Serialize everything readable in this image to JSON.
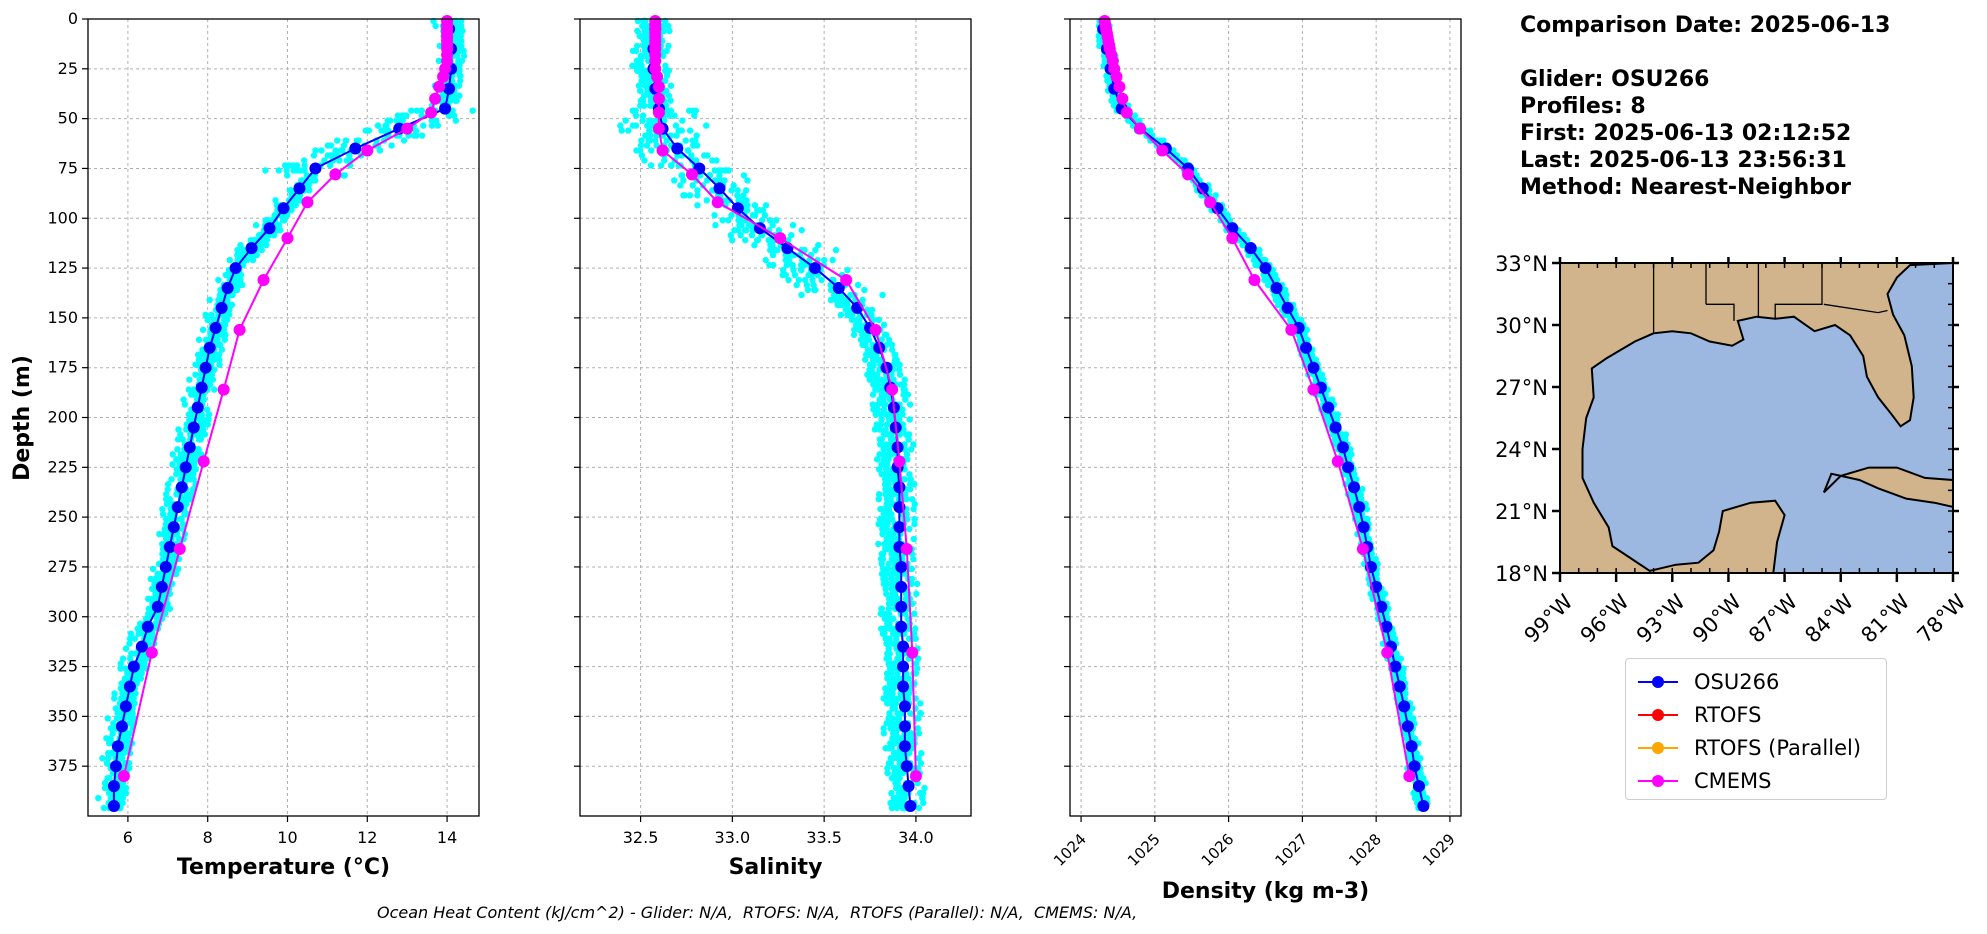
{
  "info": {
    "comparison_date": "Comparison Date: 2025-06-13",
    "glider": "Glider: OSU266",
    "profiles": "Profiles: 8",
    "first": "First: 2025-06-13 02:12:52",
    "last": "Last: 2025-06-13 23:56:31",
    "method": "Method: Nearest-Neighbor"
  },
  "footer": {
    "ohc": "Ocean Heat Content (kJ/cm^2) - Glider: N/A,  RTOFS: N/A,  RTOFS (Parallel): N/A,  CMEMS: N/A,"
  },
  "legend": [
    {
      "label": "OSU266",
      "color": "#0000ff"
    },
    {
      "label": "RTOFS",
      "color": "#ff0000"
    },
    {
      "label": "RTOFS (Parallel)",
      "color": "#ffa500"
    },
    {
      "label": "CMEMS",
      "color": "#ff00ff"
    }
  ],
  "colors": {
    "glider_cloud": "#00ffff",
    "land": "#d2b48c",
    "ocean": "#9cb8e0",
    "grid": "#b0b0b0"
  },
  "chart_data": [
    {
      "type": "line",
      "xlabel": "Temperature (°C)",
      "ylabel": "Depth (m)",
      "xlim": [
        5.0,
        14.8
      ],
      "ylim": [
        400,
        0
      ],
      "xticks": [
        6,
        8,
        10,
        12,
        14
      ],
      "yticks": [
        0,
        25,
        50,
        75,
        100,
        125,
        150,
        175,
        200,
        225,
        250,
        275,
        300,
        325,
        350,
        375
      ],
      "grid": true,
      "series": [
        {
          "name": "OSU266",
          "depth": [
            5,
            15,
            25,
            35,
            45,
            55,
            65,
            75,
            85,
            95,
            105,
            115,
            125,
            135,
            145,
            155,
            165,
            175,
            185,
            195,
            205,
            215,
            225,
            235,
            245,
            255,
            265,
            275,
            285,
            295,
            305,
            315,
            325,
            335,
            345,
            355,
            365,
            375,
            385,
            395
          ],
          "values": [
            14.05,
            14.1,
            14.1,
            14.05,
            13.95,
            12.8,
            11.7,
            10.7,
            10.3,
            9.9,
            9.55,
            9.1,
            8.7,
            8.5,
            8.35,
            8.2,
            8.05,
            7.95,
            7.85,
            7.75,
            7.65,
            7.55,
            7.45,
            7.35,
            7.25,
            7.15,
            7.05,
            6.95,
            6.85,
            6.75,
            6.5,
            6.35,
            6.15,
            6.05,
            5.95,
            5.85,
            5.75,
            5.7,
            5.65,
            5.65
          ]
        },
        {
          "name": "CMEMS",
          "depth": [
            1,
            3,
            5,
            7,
            9,
            11,
            13,
            15,
            18,
            21,
            25,
            29,
            34,
            40,
            47,
            55,
            66,
            78,
            92,
            110,
            131,
            156,
            186,
            222,
            266,
            318,
            380
          ],
          "values": [
            14.0,
            14.0,
            14.0,
            14.0,
            14.0,
            14.0,
            14.0,
            14.0,
            14.0,
            14.0,
            13.95,
            13.9,
            13.8,
            13.7,
            13.6,
            13.0,
            12.0,
            11.2,
            10.5,
            10.0,
            9.4,
            8.8,
            8.4,
            7.9,
            7.3,
            6.6,
            5.9
          ]
        }
      ]
    },
    {
      "type": "line",
      "xlabel": "Salinity",
      "xlim": [
        32.17,
        34.3
      ],
      "ylim": [
        400,
        0
      ],
      "xticks": [
        32.5,
        33.0,
        33.5,
        34.0
      ],
      "grid": true,
      "series": [
        {
          "name": "OSU266",
          "depth": [
            5,
            15,
            25,
            35,
            45,
            55,
            65,
            75,
            85,
            95,
            105,
            115,
            125,
            135,
            145,
            155,
            165,
            175,
            185,
            195,
            205,
            215,
            225,
            235,
            245,
            255,
            265,
            275,
            285,
            295,
            305,
            315,
            325,
            335,
            345,
            355,
            365,
            375,
            385,
            395
          ],
          "values": [
            32.58,
            32.57,
            32.57,
            32.58,
            32.6,
            32.62,
            32.7,
            32.82,
            32.93,
            33.03,
            33.15,
            33.3,
            33.45,
            33.58,
            33.68,
            33.75,
            33.8,
            33.84,
            33.86,
            33.88,
            33.89,
            33.9,
            33.9,
            33.91,
            33.91,
            33.91,
            33.91,
            33.92,
            33.92,
            33.92,
            33.92,
            33.93,
            33.93,
            33.93,
            33.94,
            33.94,
            33.94,
            33.95,
            33.96,
            33.97
          ]
        },
        {
          "name": "CMEMS",
          "depth": [
            1,
            3,
            5,
            7,
            9,
            11,
            13,
            15,
            18,
            21,
            25,
            29,
            34,
            40,
            47,
            55,
            66,
            78,
            92,
            110,
            131,
            156,
            186,
            222,
            266,
            318,
            380
          ],
          "values": [
            32.58,
            32.58,
            32.58,
            32.58,
            32.58,
            32.58,
            32.58,
            32.58,
            32.58,
            32.58,
            32.58,
            32.59,
            32.6,
            32.6,
            32.6,
            32.6,
            32.62,
            32.78,
            32.92,
            33.26,
            33.62,
            33.78,
            33.87,
            33.91,
            33.95,
            33.98,
            34.0
          ]
        }
      ]
    },
    {
      "type": "line",
      "xlabel": "Density (kg m-3)",
      "xlim": [
        1023.85,
        1029.15
      ],
      "ylim": [
        400,
        0
      ],
      "xticks": [
        1024,
        1025,
        1026,
        1027,
        1028,
        1029
      ],
      "grid": true,
      "series": [
        {
          "name": "OSU266",
          "depth": [
            5,
            15,
            25,
            35,
            45,
            55,
            65,
            75,
            85,
            95,
            105,
            115,
            125,
            135,
            145,
            155,
            165,
            175,
            185,
            195,
            205,
            215,
            225,
            235,
            245,
            255,
            265,
            275,
            285,
            295,
            305,
            315,
            325,
            335,
            345,
            355,
            365,
            375,
            385,
            395
          ],
          "values": [
            1024.3,
            1024.35,
            1024.4,
            1024.45,
            1024.55,
            1024.8,
            1025.15,
            1025.45,
            1025.65,
            1025.85,
            1026.05,
            1026.3,
            1026.5,
            1026.65,
            1026.8,
            1026.95,
            1027.05,
            1027.15,
            1027.25,
            1027.35,
            1027.45,
            1027.55,
            1027.62,
            1027.7,
            1027.77,
            1027.83,
            1027.88,
            1027.93,
            1028.0,
            1028.07,
            1028.14,
            1028.2,
            1028.26,
            1028.32,
            1028.38,
            1028.43,
            1028.48,
            1028.52,
            1028.58,
            1028.64
          ]
        },
        {
          "name": "CMEMS",
          "depth": [
            1,
            3,
            5,
            7,
            9,
            11,
            13,
            15,
            18,
            21,
            25,
            29,
            34,
            40,
            47,
            55,
            66,
            78,
            92,
            110,
            131,
            156,
            186,
            222,
            266,
            318,
            380
          ],
          "values": [
            1024.32,
            1024.33,
            1024.34,
            1024.35,
            1024.36,
            1024.37,
            1024.38,
            1024.39,
            1024.41,
            1024.43,
            1024.45,
            1024.48,
            1024.52,
            1024.56,
            1024.62,
            1024.8,
            1025.1,
            1025.45,
            1025.75,
            1026.05,
            1026.35,
            1026.85,
            1027.15,
            1027.48,
            1027.82,
            1028.15,
            1028.45
          ]
        }
      ]
    },
    {
      "type": "map",
      "lon_range": [
        -99,
        -78
      ],
      "lat_range": [
        18,
        33
      ],
      "lon_ticks": [
        "99°W",
        "96°W",
        "93°W",
        "90°W",
        "87°W",
        "84°W",
        "81°W",
        "78°W"
      ],
      "lat_ticks": [
        "33°N",
        "30°N",
        "27°N",
        "24°N",
        "21°N",
        "18°N"
      ]
    }
  ]
}
